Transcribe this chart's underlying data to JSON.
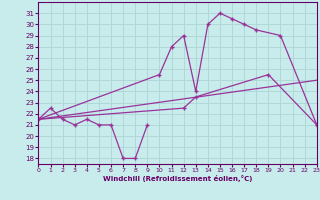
{
  "xlabel": "Windchill (Refroidissement éolien,°C)",
  "xlim": [
    0,
    23
  ],
  "ylim": [
    17.5,
    32
  ],
  "yticks": [
    18,
    19,
    20,
    21,
    22,
    23,
    24,
    25,
    26,
    27,
    28,
    29,
    30,
    31
  ],
  "xticks": [
    0,
    1,
    2,
    3,
    4,
    5,
    6,
    7,
    8,
    9,
    10,
    11,
    12,
    13,
    14,
    15,
    16,
    17,
    18,
    19,
    20,
    21,
    22,
    23
  ],
  "bg_color": "#c8ecec",
  "grid_color": "#b0d8d8",
  "line_color": "#993399",
  "line1_x": [
    0,
    1,
    2,
    3,
    4,
    5,
    6,
    7,
    8,
    9
  ],
  "line1_y": [
    21.5,
    22.5,
    21.5,
    21.0,
    21.5,
    21.0,
    21.0,
    18.0,
    18.0,
    21.0
  ],
  "line2_x": [
    0,
    10,
    11,
    12,
    13,
    14,
    15,
    16,
    17,
    18,
    20,
    23
  ],
  "line2_y": [
    21.5,
    25.5,
    28.0,
    29.0,
    24.0,
    30.0,
    31.0,
    30.5,
    30.0,
    29.5,
    29.0,
    21.0
  ],
  "line3_x": [
    0,
    12,
    13,
    19,
    23
  ],
  "line3_y": [
    21.5,
    22.5,
    23.5,
    25.5,
    21.0
  ],
  "line4_x": [
    0,
    23
  ],
  "line4_y": [
    21.5,
    25.0
  ]
}
